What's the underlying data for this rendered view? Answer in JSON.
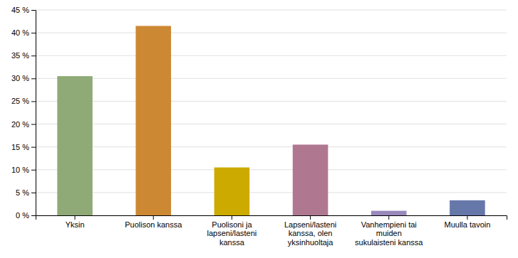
{
  "chart_data": {
    "type": "bar",
    "categories": [
      "Yksin",
      "Puolison kanssa",
      "Puolisoni ja\nlapseni/lasteni\nkanssa",
      "Lapseni/lasteni\nkanssa, olen\nyksinhuoltaja",
      "Vanhempieni tai\nmuiden\nsukulaisteni kanssa",
      "Muulla tavoin"
    ],
    "values": [
      30.5,
      41.5,
      10.5,
      15.5,
      1.0,
      3.3
    ],
    "colors": [
      "#8faa76",
      "#cc8833",
      "#ccaa00",
      "#b07890",
      "#9988bb",
      "#6677aa"
    ],
    "ylim": [
      0,
      45
    ],
    "yticks": [
      {
        "value": 0,
        "label": "0 %"
      },
      {
        "value": 5,
        "label": "5 %"
      },
      {
        "value": 10,
        "label": "10 %"
      },
      {
        "value": 15,
        "label": "15 %"
      },
      {
        "value": 20,
        "label": "20 %"
      },
      {
        "value": 25,
        "label": "25 %"
      },
      {
        "value": 30,
        "label": "30 %"
      },
      {
        "value": 35,
        "label": "35 %"
      },
      {
        "value": 40,
        "label": "40 %"
      },
      {
        "value": 45,
        "label": "45 %"
      }
    ],
    "grid": true
  }
}
